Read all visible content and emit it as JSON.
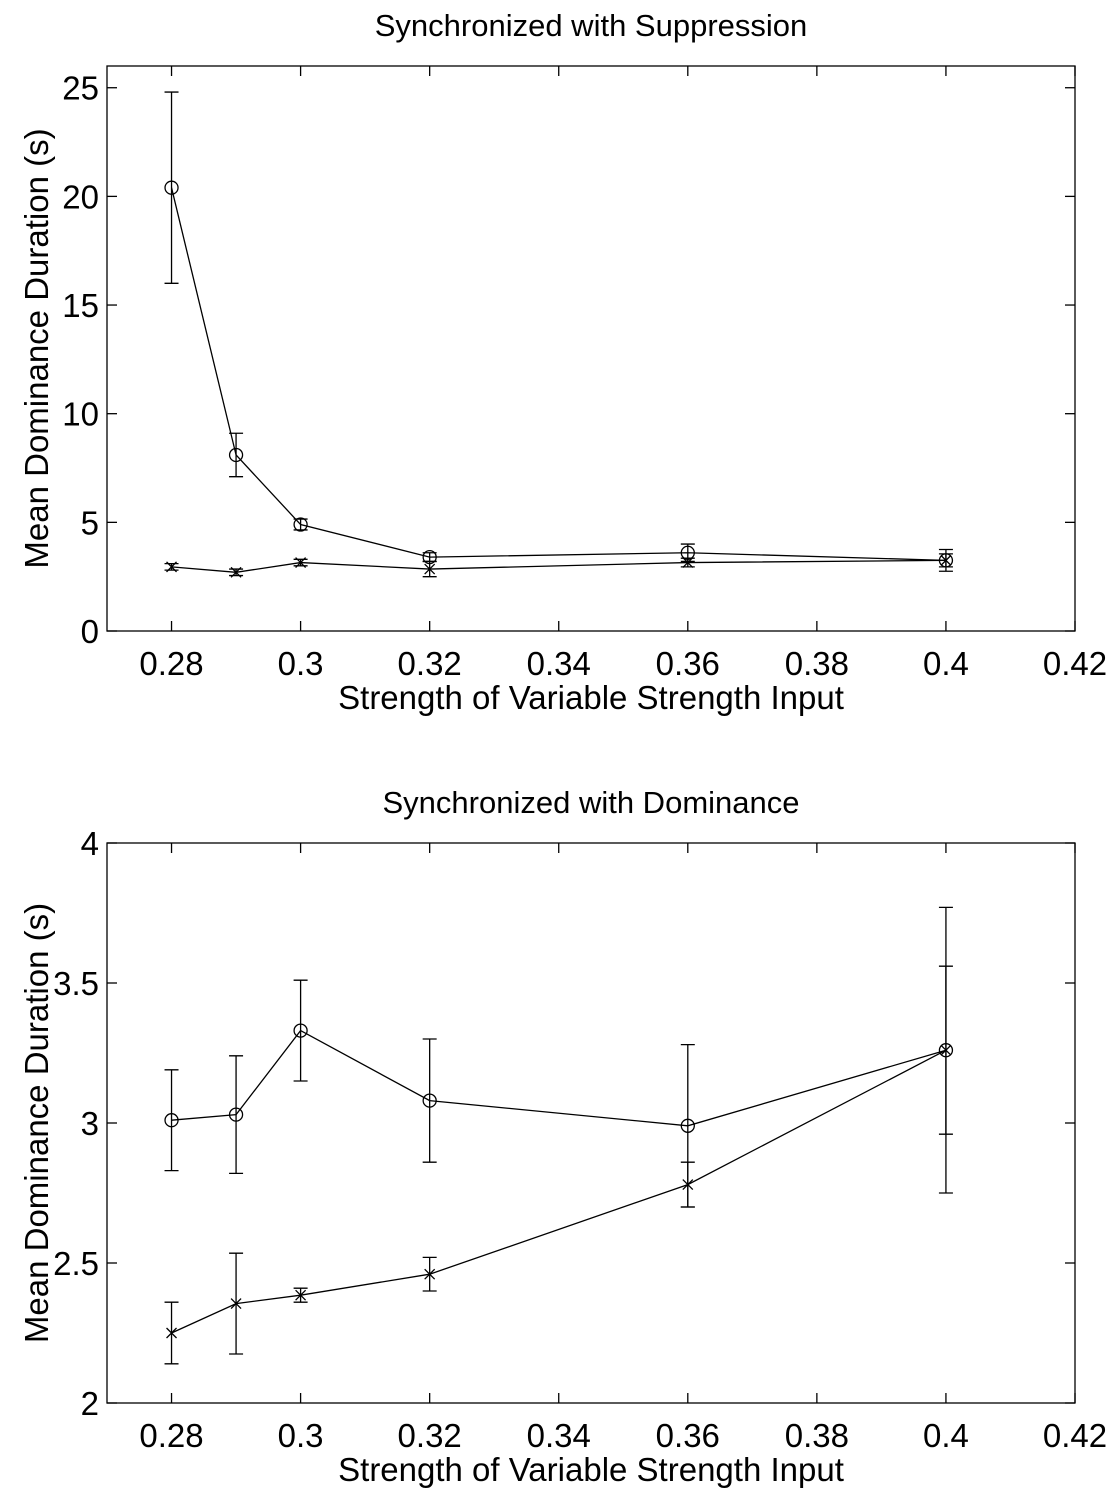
{
  "chart_data": [
    {
      "type": "line",
      "title": "Synchronized with Suppression",
      "x_label": "Strength of Variable Strength Input",
      "y_label": "Mean Dominance Duration (s)",
      "x": [
        0.28,
        0.29,
        0.3,
        0.32,
        0.36,
        0.4
      ],
      "series": [
        {
          "marker": "o",
          "color": "#000000",
          "values": [
            20.4,
            8.1,
            4.9,
            3.4,
            3.6,
            3.25
          ],
          "errors": [
            4.4,
            1.0,
            0.25,
            0.2,
            0.4,
            0.5
          ]
        },
        {
          "marker": "x",
          "color": "#000000",
          "values": [
            2.95,
            2.7,
            3.15,
            2.85,
            3.15,
            3.25
          ],
          "errors": [
            0.15,
            0.15,
            0.15,
            0.35,
            0.2,
            0.3
          ]
        }
      ],
      "xlim": [
        0.27,
        0.42
      ],
      "xticks": [
        0.28,
        0.3,
        0.32,
        0.34,
        0.36,
        0.38,
        0.4,
        0.42
      ],
      "ylim": [
        0,
        26
      ],
      "yticks": [
        0,
        5,
        10,
        15,
        20,
        25
      ]
    },
    {
      "type": "line",
      "title": "Synchronized with Dominance",
      "x_label": "Strength of Variable Strength Input",
      "y_label": "Mean Dominance Duration (s)",
      "x": [
        0.28,
        0.29,
        0.3,
        0.32,
        0.36,
        0.4
      ],
      "series": [
        {
          "marker": "o",
          "color": "#000000",
          "values": [
            3.01,
            3.03,
            3.33,
            3.08,
            2.99,
            3.26
          ],
          "errors": [
            0.18,
            0.21,
            0.18,
            0.22,
            0.29,
            0.51
          ]
        },
        {
          "marker": "x",
          "color": "#000000",
          "values": [
            2.25,
            2.355,
            2.385,
            2.46,
            2.78,
            3.26
          ],
          "errors": [
            0.11,
            0.18,
            0.025,
            0.06,
            0.08,
            0.3
          ]
        }
      ],
      "xlim": [
        0.27,
        0.42
      ],
      "xticks": [
        0.28,
        0.3,
        0.32,
        0.34,
        0.36,
        0.38,
        0.4,
        0.42
      ],
      "ylim": [
        2,
        4
      ],
      "yticks": [
        2,
        2.5,
        3,
        3.5,
        4
      ]
    }
  ]
}
